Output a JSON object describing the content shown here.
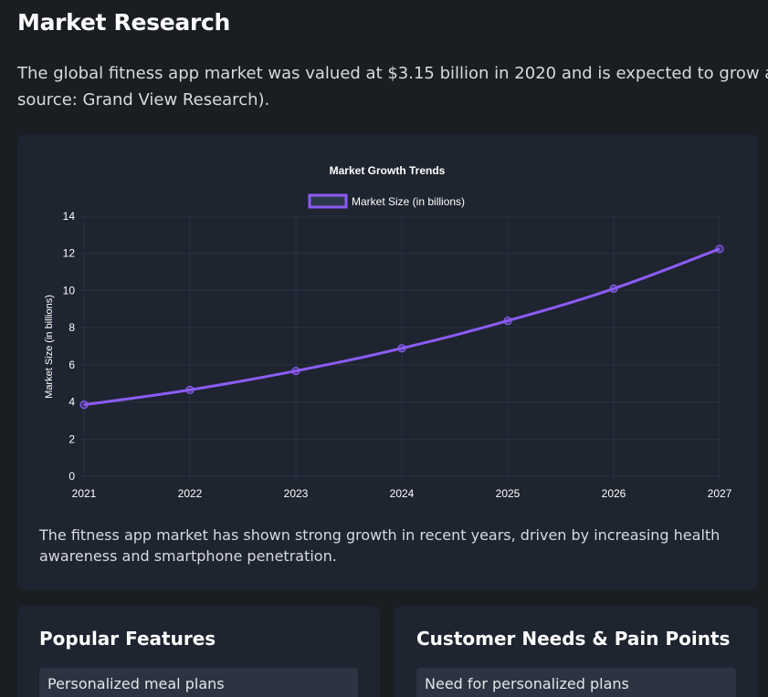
{
  "page": {
    "title": "Market Research",
    "intro": "The global fitness app market was valued at $3.15 billion in 2020 and is expected to grow at source: Grand View Research)."
  },
  "chart_card": {
    "description": "The fitness app market has shown strong growth in recent years, driven by increasing health awareness and smartphone penetration."
  },
  "chart_data": {
    "type": "line",
    "title": "Market Growth Trends",
    "xlabel": "",
    "ylabel": "Market Size (in billions)",
    "categories": [
      "2021",
      "2022",
      "2023",
      "2024",
      "2025",
      "2026",
      "2027"
    ],
    "series": [
      {
        "name": "Market Size (in billions)",
        "values": [
          3.85,
          4.65,
          5.67,
          6.89,
          8.37,
          10.1,
          12.24
        ],
        "color": "#8b5cf6"
      }
    ],
    "ylim": [
      0,
      14
    ],
    "yticks": [
      0,
      2,
      4,
      6,
      8,
      10,
      12,
      14
    ],
    "grid": true,
    "legend": "top-center"
  },
  "cards": {
    "features": {
      "title": "Popular Features",
      "items": [
        "Personalized meal plans"
      ]
    },
    "needs": {
      "title": "Customer Needs & Pain Points",
      "items": [
        "Need for personalized plans"
      ]
    }
  },
  "colors": {
    "background": "#1a1d21",
    "card": "#1e2430",
    "item": "#2d3441",
    "accent": "#8b5cf6",
    "grid": "#2a3140"
  }
}
